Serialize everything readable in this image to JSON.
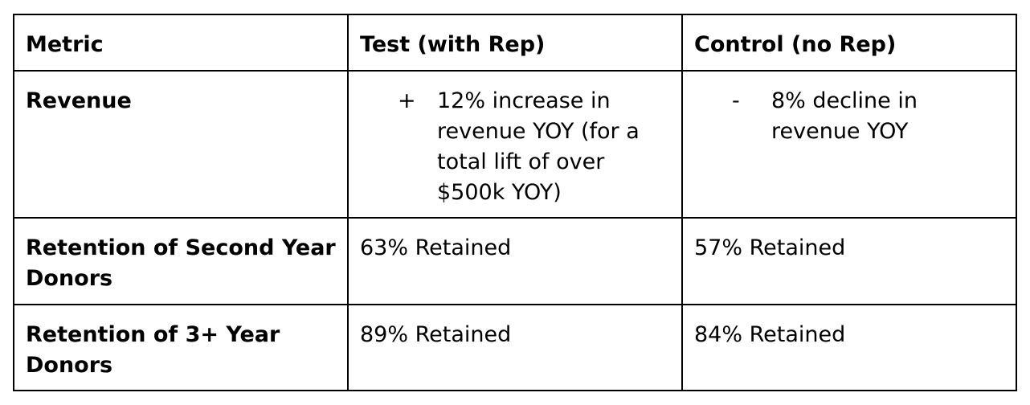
{
  "table": {
    "headers": {
      "metric": "Metric",
      "test": "Test (with Rep)",
      "control": "Control (no Rep)"
    },
    "rows": [
      {
        "metric": "Revenue",
        "test_bullet": "+",
        "test": "12% increase in revenue YOY (for a total lift of over $500k YOY)",
        "control_bullet": "-",
        "control": "8% decline in revenue YOY"
      },
      {
        "metric": "Retention of Second Year Donors",
        "test": "63% Retained",
        "control": "57% Retained"
      },
      {
        "metric": "Retention of 3+ Year Donors",
        "test": "89% Retained",
        "control": "84% Retained"
      }
    ]
  }
}
